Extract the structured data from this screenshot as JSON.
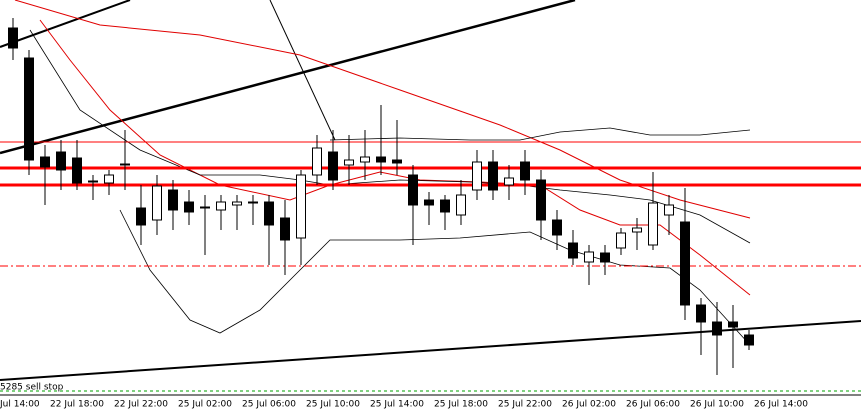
{
  "chart_data": {
    "type": "candlestick",
    "ylim": [
      0,
      413
    ],
    "up_color": "#ffffff",
    "down_color": "#000000",
    "candles": [
      [
        385,
        395,
        353,
        365
      ],
      [
        355,
        363,
        238,
        253
      ],
      [
        256,
        268,
        208,
        246
      ],
      [
        261,
        273,
        223,
        243
      ],
      [
        255,
        273,
        223,
        230
      ],
      [
        232,
        238,
        213,
        231
      ],
      [
        230,
        243,
        218,
        238
      ],
      [
        248,
        283,
        223,
        249
      ],
      [
        205,
        228,
        168,
        188
      ],
      [
        193,
        238,
        178,
        227
      ],
      [
        223,
        233,
        183,
        203
      ],
      [
        211,
        223,
        188,
        201
      ],
      [
        205,
        218,
        158,
        206
      ],
      [
        203,
        218,
        183,
        211
      ],
      [
        208,
        218,
        183,
        211
      ],
      [
        211,
        218,
        188,
        210
      ],
      [
        211,
        218,
        148,
        188
      ],
      [
        195,
        213,
        138,
        173
      ],
      [
        175,
        243,
        148,
        238
      ],
      [
        238,
        278,
        228,
        265
      ],
      [
        261,
        283,
        223,
        233
      ],
      [
        248,
        278,
        228,
        253
      ],
      [
        251,
        283,
        233,
        256
      ],
      [
        256,
        308,
        238,
        251
      ],
      [
        253,
        293,
        238,
        250
      ],
      [
        238,
        248,
        168,
        208
      ],
      [
        213,
        221,
        188,
        208
      ],
      [
        213,
        218,
        183,
        201
      ],
      [
        198,
        233,
        188,
        218
      ],
      [
        223,
        263,
        213,
        251
      ],
      [
        251,
        263,
        213,
        223
      ],
      [
        228,
        248,
        213,
        235
      ],
      [
        251,
        263,
        218,
        233
      ],
      [
        233,
        243,
        173,
        193
      ],
      [
        193,
        203,
        163,
        178
      ],
      [
        170,
        183,
        148,
        155
      ],
      [
        151,
        168,
        128,
        161
      ],
      [
        160,
        168,
        138,
        151
      ],
      [
        165,
        185,
        158,
        180
      ],
      [
        181,
        195,
        163,
        185
      ],
      [
        168,
        241,
        163,
        210
      ],
      [
        198,
        218,
        178,
        208
      ],
      [
        191,
        225,
        93,
        108
      ],
      [
        108,
        115,
        58,
        91
      ],
      [
        91,
        111,
        38,
        78
      ],
      [
        91,
        108,
        45,
        86
      ],
      [
        78,
        83,
        63,
        68
      ]
    ],
    "levels": [
      {
        "value": 271,
        "color": "#ff0000",
        "style": "thin"
      },
      {
        "value": 245,
        "color": "#ff0000",
        "style": "thick"
      },
      {
        "value": 228,
        "color": "#ff0000",
        "style": "thick"
      },
      {
        "value": 147,
        "color": "#ff0000",
        "style": "dashdot"
      }
    ],
    "x_labels": [
      "Jul 14:00",
      "22 Jul 18:00",
      "22 Jul 22:00",
      "25 Jul 02:00",
      "25 Jul 06:00",
      "25 Jul 10:00",
      "25 Jul 14:00",
      "25 Jul 18:00",
      "25 Jul 22:00",
      "26 Jul 02:00",
      "26 Jul 06:00",
      "26 Jul 10:00",
      "26 Jul 14:00"
    ],
    "annotation": "5285 sell stop"
  }
}
